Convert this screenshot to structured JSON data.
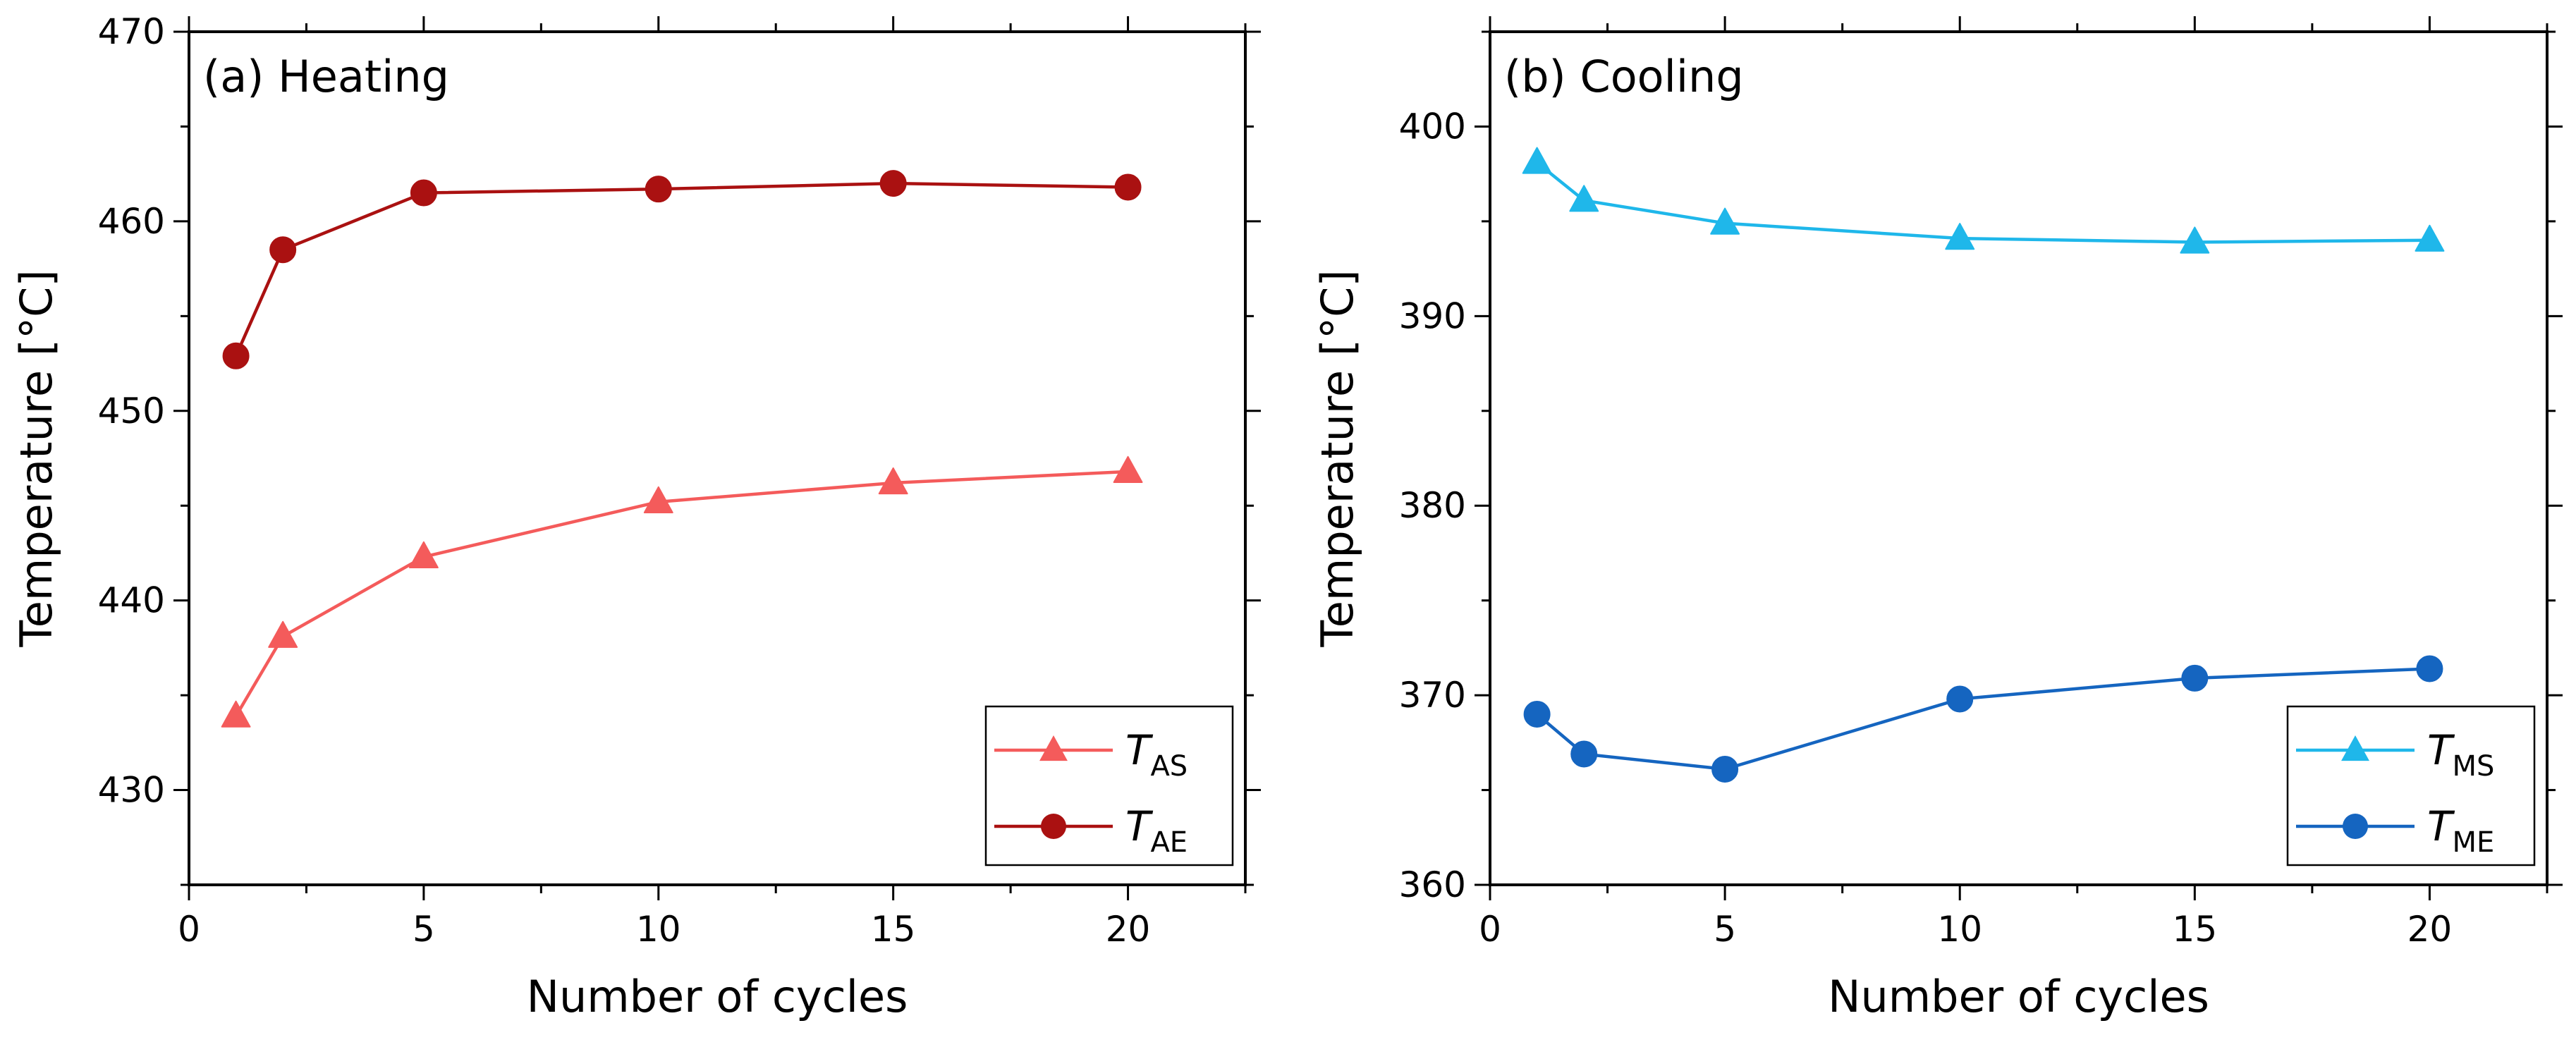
{
  "chart_data": [
    {
      "type": "line",
      "panel_label": "(a) Heating",
      "xlabel": "Number of cycles",
      "ylabel": "Temperature [°C]",
      "xlim": [
        0,
        22.5
      ],
      "ylim": [
        425,
        470
      ],
      "xticks": [
        0,
        5,
        10,
        15,
        20
      ],
      "yticks": [
        430,
        440,
        450,
        460,
        470
      ],
      "x": [
        1,
        2,
        5,
        10,
        15,
        20
      ],
      "legend_position": "bottom-right",
      "series": [
        {
          "name": "T_AS",
          "label_main": "T",
          "label_sub": "AS",
          "marker": "triangle",
          "color": "#f45b5b",
          "values": [
            433.9,
            438.1,
            442.3,
            445.2,
            446.2,
            446.8
          ]
        },
        {
          "name": "T_AE",
          "label_main": "T",
          "label_sub": "AE",
          "marker": "circle",
          "color": "#aa1111",
          "values": [
            452.9,
            458.5,
            461.5,
            461.7,
            462.0,
            461.8
          ]
        }
      ]
    },
    {
      "type": "line",
      "panel_label": "(b) Cooling",
      "xlabel": "Number of cycles",
      "ylabel": "Temperature [°C]",
      "xlim": [
        0,
        22.5
      ],
      "ylim": [
        360,
        405
      ],
      "xticks": [
        0,
        5,
        10,
        15,
        20
      ],
      "yticks": [
        360,
        370,
        380,
        390,
        400
      ],
      "x": [
        1,
        2,
        5,
        10,
        15,
        20
      ],
      "legend_position": "bottom-right",
      "series": [
        {
          "name": "T_MS",
          "label_main": "T",
          "label_sub": "MS",
          "marker": "triangle",
          "color": "#1fb7ea",
          "values": [
            398.1,
            396.1,
            394.9,
            394.1,
            393.9,
            394.0
          ]
        },
        {
          "name": "T_ME",
          "label_main": "T",
          "label_sub": "ME",
          "marker": "circle",
          "color": "#1565c0",
          "values": [
            369.0,
            366.9,
            366.1,
            369.8,
            370.9,
            371.4
          ]
        }
      ]
    }
  ]
}
